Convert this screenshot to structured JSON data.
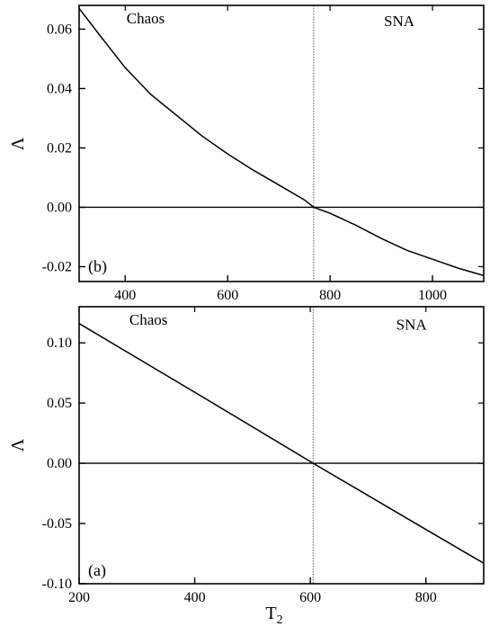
{
  "chart_data": [
    {
      "type": "line",
      "panel_label": "(b)",
      "xlabel": "",
      "ylabel": "Λ",
      "xlim": [
        310,
        1100
      ],
      "ylim": [
        -0.025,
        0.068
      ],
      "xticks": [
        400,
        600,
        800,
        1000
      ],
      "yticks": [
        -0.02,
        0.0,
        0.02,
        0.04,
        0.06
      ],
      "ytick_labels": [
        "-0.02",
        "0.00",
        "0.02",
        "0.04",
        "0.06"
      ],
      "reference_lines": {
        "horizontal_y": 0.0,
        "vertical_x": 768
      },
      "regions": [
        {
          "label": "Chaos",
          "x": 440,
          "y": 0.062
        },
        {
          "label": "SNA",
          "x": 935,
          "y": 0.061
        }
      ],
      "series": [
        {
          "x": [
            310,
            350,
            400,
            450,
            500,
            550,
            600,
            650,
            700,
            750,
            768,
            800,
            850,
            900,
            950,
            1000,
            1050,
            1100
          ],
          "values": [
            0.067,
            0.058,
            0.047,
            0.038,
            0.031,
            0.024,
            0.018,
            0.0125,
            0.0075,
            0.0025,
            0.0,
            -0.002,
            -0.006,
            -0.0105,
            -0.0145,
            -0.0175,
            -0.0205,
            -0.023
          ]
        }
      ]
    },
    {
      "type": "line",
      "panel_label": "(a)",
      "xlabel": "T",
      "xlabel_sub": "2",
      "ylabel": "Λ",
      "xlim": [
        200,
        900
      ],
      "ylim": [
        -0.1,
        0.13
      ],
      "xticks": [
        200,
        400,
        600,
        800
      ],
      "yticks": [
        -0.1,
        -0.05,
        0.0,
        0.05,
        0.1
      ],
      "ytick_labels": [
        "-0.10",
        "-0.05",
        "0.00",
        "0.05",
        "0.10"
      ],
      "reference_lines": {
        "horizontal_y": 0.0,
        "vertical_x": 605
      },
      "regions": [
        {
          "label": "Chaos",
          "x": 320,
          "y": 0.115
        },
        {
          "label": "SNA",
          "x": 775,
          "y": 0.111
        }
      ],
      "series": [
        {
          "x": [
            200,
            400,
            605,
            800,
            900
          ],
          "values": [
            0.116,
            0.059,
            0.0,
            -0.055,
            -0.083
          ]
        }
      ]
    }
  ]
}
